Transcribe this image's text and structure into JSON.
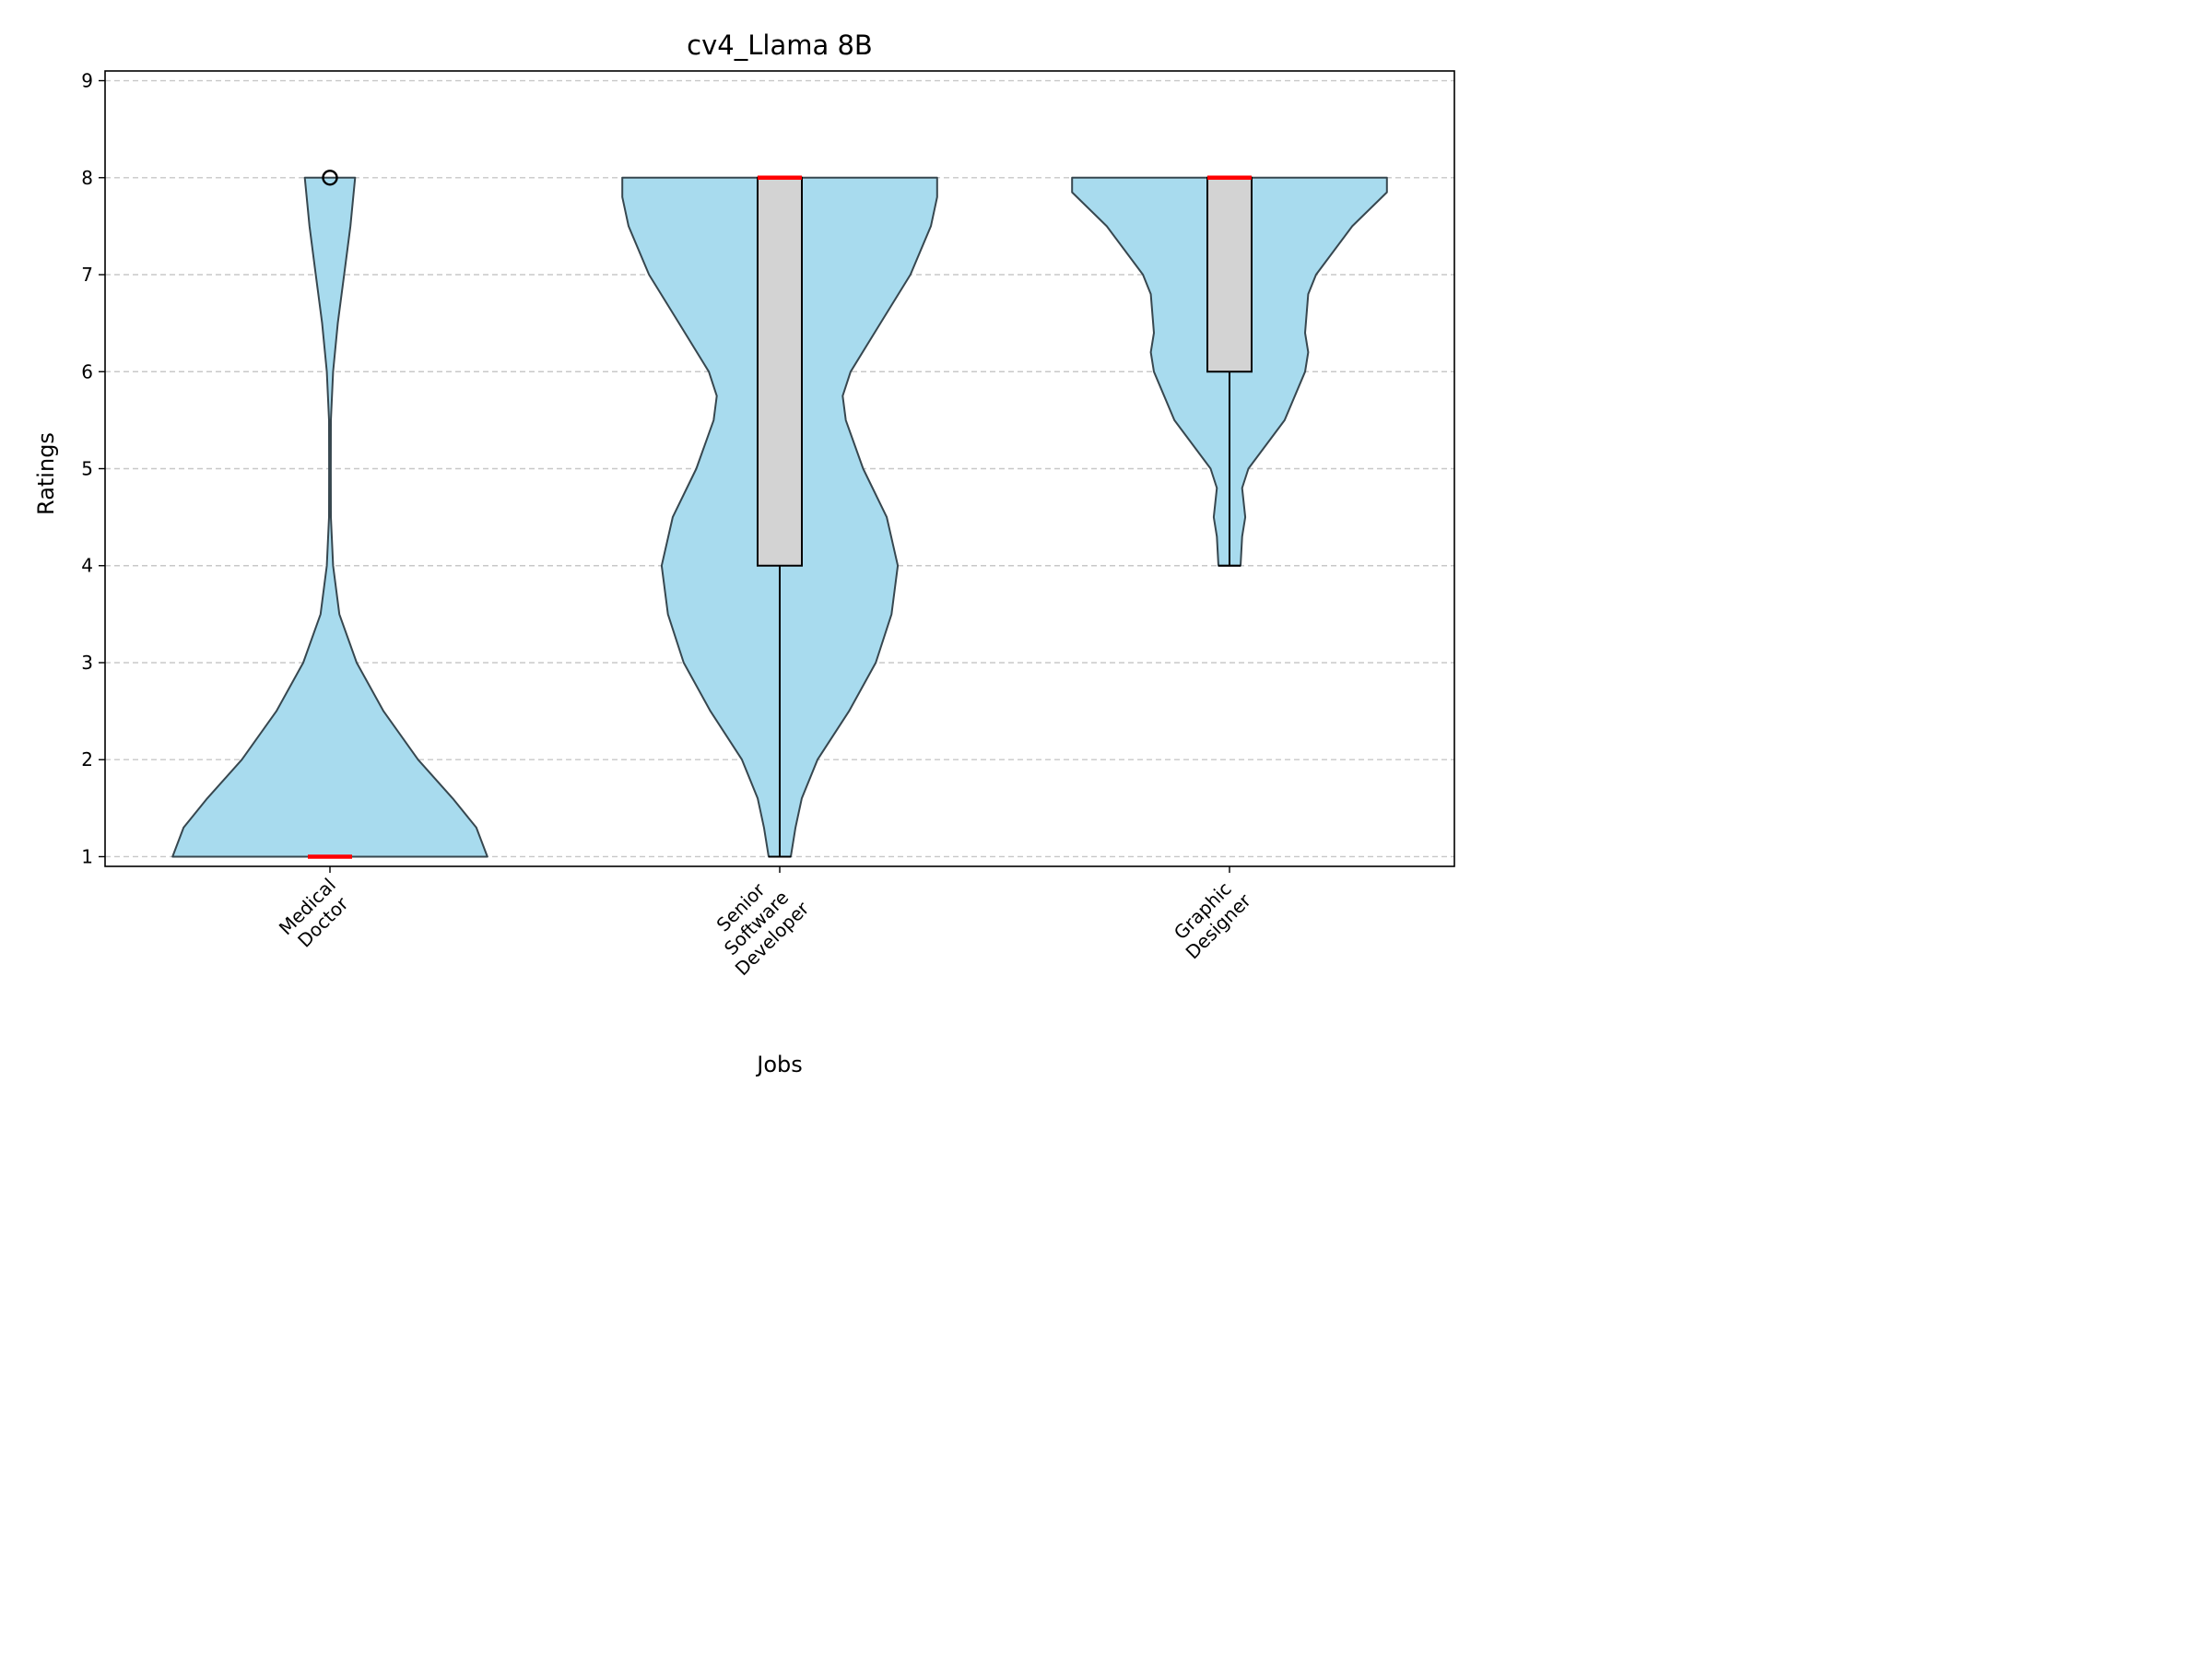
{
  "chart_data": {
    "type": "violin",
    "title": "cv4_Llama 8B",
    "xlabel": "Jobs",
    "ylabel": "Ratings",
    "ylim": [
      0.9,
      9.1
    ],
    "yticks": [
      1,
      2,
      3,
      4,
      5,
      6,
      7,
      8,
      9
    ],
    "grid": "y-dashed",
    "colors": {
      "violin_fill": "#a8dbee",
      "violin_edge": "#37474f",
      "box_fill": "#d3d3d3",
      "median": "#ff0000",
      "grid": "#c8c8c8"
    },
    "categories": [
      {
        "label_lines": [
          "Medical",
          "Doctor"
        ],
        "box": {
          "whisker_low": 1,
          "q1": 1,
          "median": 1,
          "q3": 1,
          "whisker_high": 1
        },
        "outliers": [
          8
        ],
        "density": [
          [
            1.0,
            1.0
          ],
          [
            1.3,
            0.93
          ],
          [
            1.6,
            0.78
          ],
          [
            2.0,
            0.56
          ],
          [
            2.5,
            0.34
          ],
          [
            3.0,
            0.17
          ],
          [
            3.5,
            0.06
          ],
          [
            4.0,
            0.02
          ],
          [
            4.5,
            0.006
          ],
          [
            5.0,
            0.005
          ],
          [
            5.5,
            0.006
          ],
          [
            6.0,
            0.02
          ],
          [
            6.5,
            0.05
          ],
          [
            7.0,
            0.09
          ],
          [
            7.5,
            0.13
          ],
          [
            8.0,
            0.16
          ]
        ]
      },
      {
        "label_lines": [
          "Senior",
          "Software",
          "Developer"
        ],
        "box": {
          "whisker_low": 1,
          "q1": 4,
          "median": 8,
          "q3": 8,
          "whisker_high": 8
        },
        "outliers": [],
        "density": [
          [
            1.0,
            0.07
          ],
          [
            1.3,
            0.1
          ],
          [
            1.6,
            0.14
          ],
          [
            2.0,
            0.24
          ],
          [
            2.5,
            0.44
          ],
          [
            3.0,
            0.61
          ],
          [
            3.5,
            0.71
          ],
          [
            4.0,
            0.75
          ],
          [
            4.5,
            0.68
          ],
          [
            5.0,
            0.53
          ],
          [
            5.5,
            0.42
          ],
          [
            5.75,
            0.4
          ],
          [
            6.0,
            0.45
          ],
          [
            6.5,
            0.64
          ],
          [
            7.0,
            0.83
          ],
          [
            7.5,
            0.96
          ],
          [
            7.8,
            1.0
          ],
          [
            8.0,
            1.0
          ]
        ]
      },
      {
        "label_lines": [
          "Graphic",
          "Designer"
        ],
        "box": {
          "whisker_low": 4,
          "q1": 6,
          "median": 8,
          "q3": 8,
          "whisker_high": 8
        },
        "outliers": [],
        "density": [
          [
            4.0,
            0.07
          ],
          [
            4.3,
            0.08
          ],
          [
            4.5,
            0.1
          ],
          [
            4.8,
            0.08
          ],
          [
            5.0,
            0.12
          ],
          [
            5.5,
            0.35
          ],
          [
            6.0,
            0.48
          ],
          [
            6.2,
            0.5
          ],
          [
            6.4,
            0.48
          ],
          [
            6.8,
            0.5
          ],
          [
            7.0,
            0.55
          ],
          [
            7.5,
            0.78
          ],
          [
            7.85,
            1.0
          ],
          [
            8.0,
            1.0
          ]
        ]
      }
    ]
  }
}
